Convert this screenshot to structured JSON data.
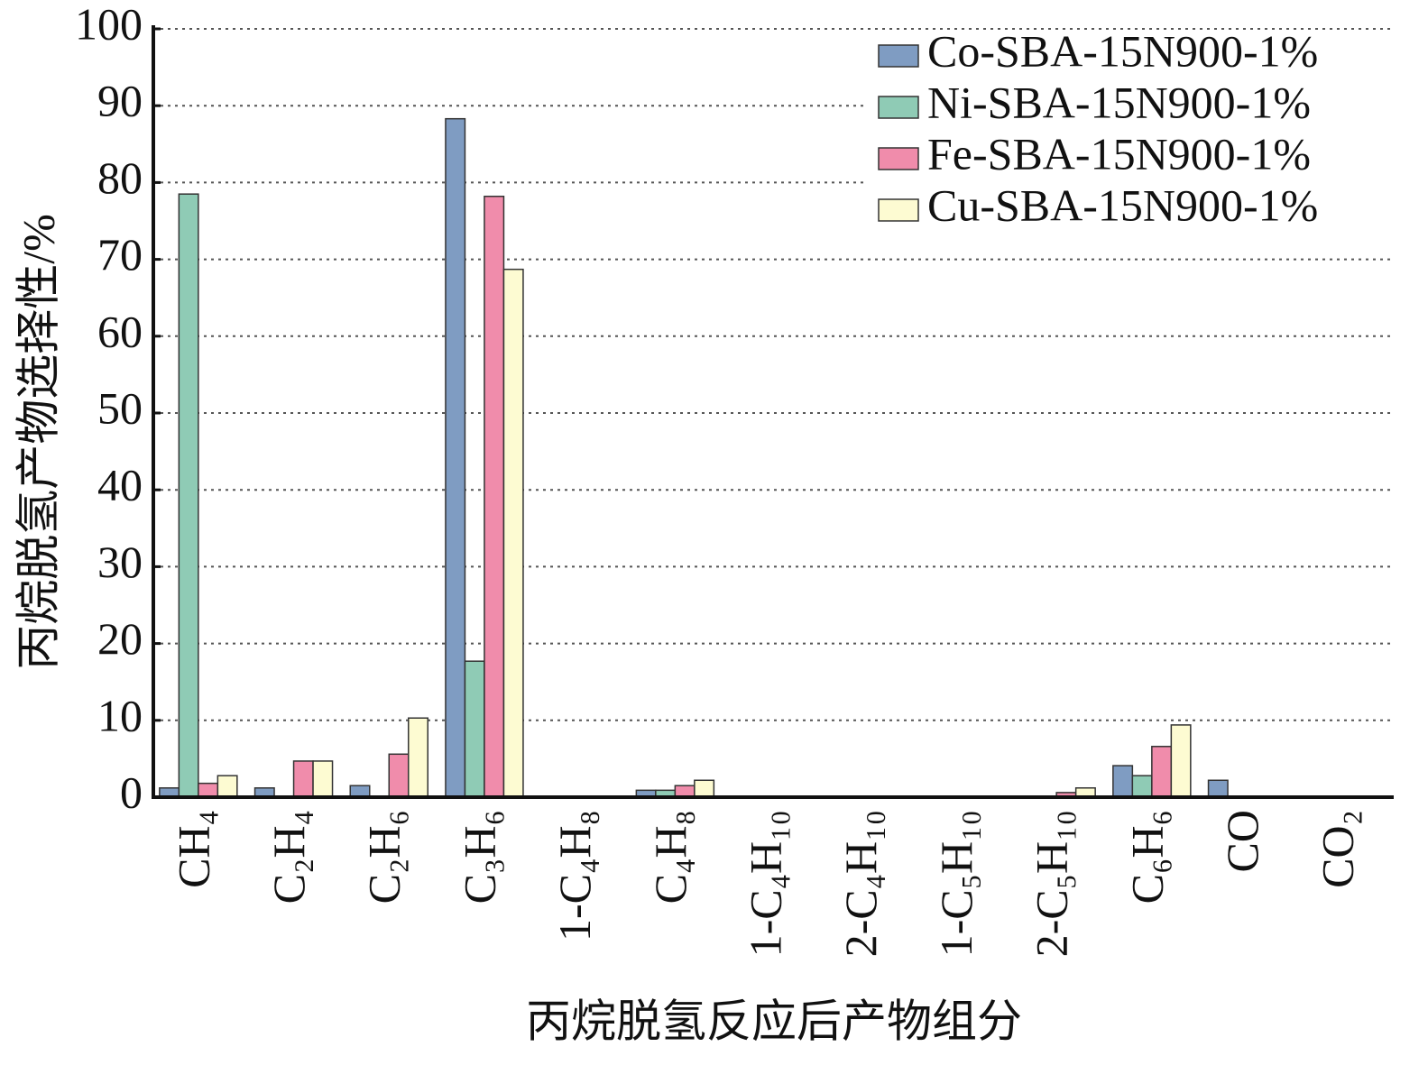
{
  "chart_data": {
    "type": "bar",
    "x_label": "丙烷脱氢反应后产物组分",
    "y_label": "丙烷脱氢产物选择性/%",
    "categories": [
      "CH₄",
      "C₂H₄",
      "C₂H₆",
      "C₃H₆",
      "1-C₄H₈",
      "C₄H₈",
      "1-C₄H₁₀",
      "2-C₄H₁₀",
      "1-C₅H₁₀",
      "2-C₅H₁₀",
      "C₆H₆",
      "CO",
      "CO₂"
    ],
    "series": [
      {
        "name": "Co-SBA-15N900-1%",
        "color": "#7f9cc2",
        "values": [
          1.2,
          1.2,
          1.5,
          88.3,
          0,
          0.9,
          0,
          0,
          0,
          0,
          4.1,
          2.2,
          0
        ]
      },
      {
        "name": "Ni-SBA-15N900-1%",
        "color": "#8fcbb5",
        "values": [
          78.5,
          0,
          0,
          17.7,
          0,
          0.9,
          0,
          0,
          0,
          0,
          2.8,
          0,
          0
        ]
      },
      {
        "name": "Fe-SBA-15N900-1%",
        "color": "#f08cab",
        "values": [
          1.8,
          4.7,
          5.6,
          78.2,
          0,
          1.5,
          0,
          0,
          0,
          0.6,
          6.6,
          0,
          0
        ]
      },
      {
        "name": "Cu-SBA-15N900-1%",
        "color": "#fdfbd2",
        "values": [
          2.8,
          4.7,
          10.3,
          68.7,
          0,
          2.2,
          0,
          0,
          0,
          1.2,
          9.4,
          0,
          0
        ]
      }
    ],
    "ylim": [
      0,
      100
    ],
    "yticks": [
      0,
      10,
      20,
      30,
      40,
      50,
      60,
      70,
      80,
      90,
      100
    ],
    "grid": true,
    "legend": "top-right"
  }
}
